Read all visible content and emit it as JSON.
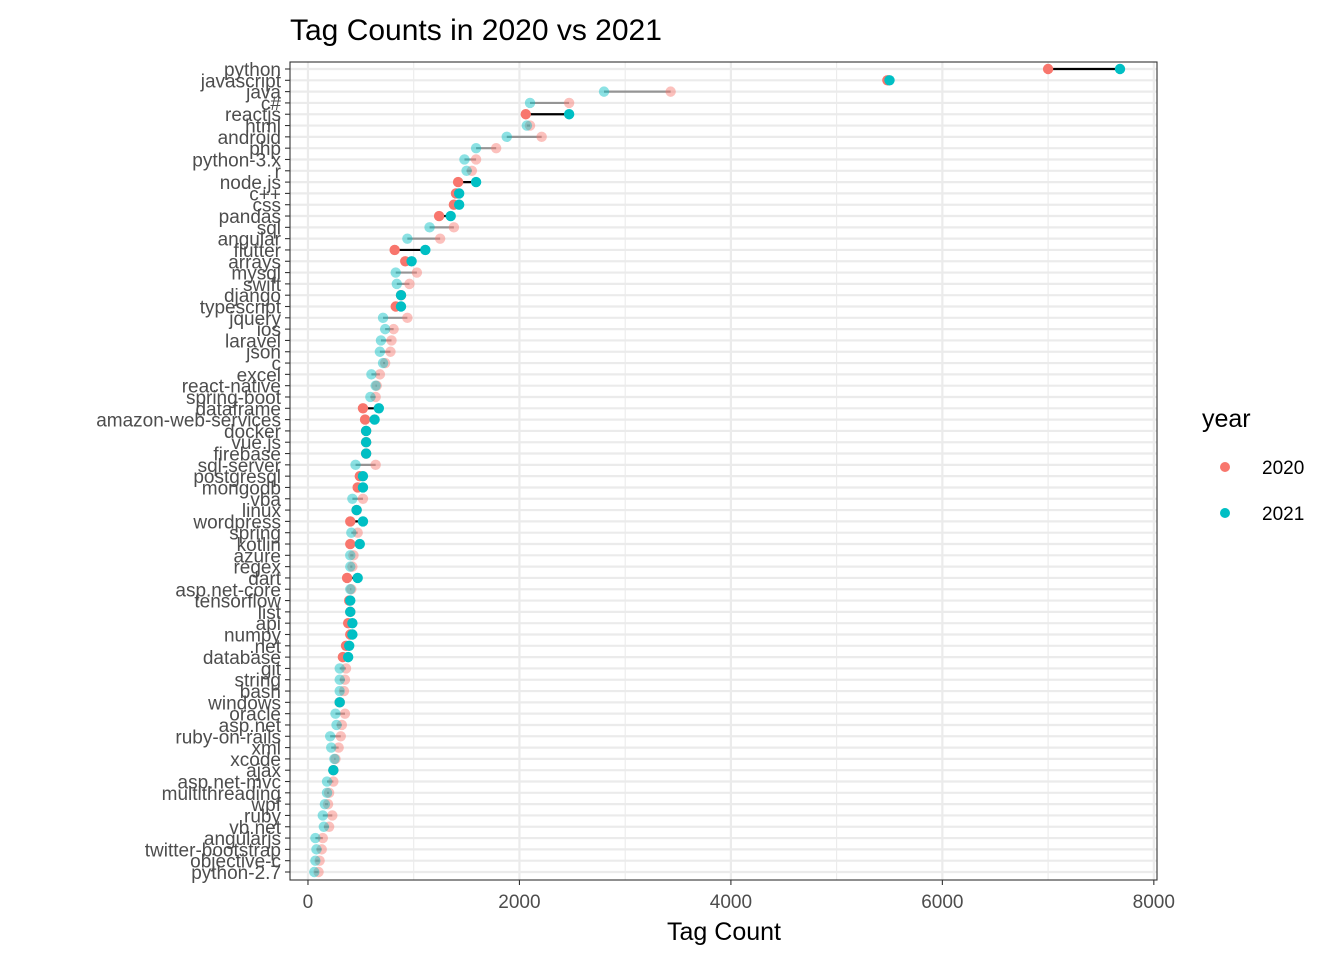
{
  "colors": {
    "y2020": "#F8766D",
    "y2021": "#00BFC4",
    "grid": "#EBEBEB",
    "panel_border": "#333333",
    "tick_text": "#4D4D4D"
  },
  "chart_data": {
    "type": "dumbbell",
    "title": "Tag Counts in 2020 vs 2021",
    "xlabel": "Tag Count",
    "ylabel": "",
    "xlim": [
      -170,
      8030
    ],
    "x_ticks": [
      0,
      2000,
      4000,
      6000,
      8000
    ],
    "x_tick_labels": [
      "0",
      "2000",
      "4000",
      "6000",
      "8000"
    ],
    "grid": true,
    "legend": {
      "title": "year",
      "position": "right",
      "entries": [
        "2020",
        "2021"
      ]
    },
    "categories": [
      "python",
      "javascript",
      "java",
      "c#",
      "reactjs",
      "html",
      "android",
      "php",
      "python-3.x",
      "r",
      "node.js",
      "c++",
      "css",
      "pandas",
      "sql",
      "angular",
      "flutter",
      "arrays",
      "mysql",
      "swift",
      "django",
      "typescript",
      "jquery",
      "ios",
      "laravel",
      "json",
      "c",
      "excel",
      "react-native",
      "spring-boot",
      "dataframe",
      "amazon-web-services",
      "docker",
      "vue.js",
      "firebase",
      "sql-server",
      "postgresql",
      "mongodb",
      "vba",
      "linux",
      "wordpress",
      "spring",
      "kotlin",
      "azure",
      "regex",
      "dart",
      "asp.net-core",
      "tensorflow",
      "list",
      "api",
      "numpy",
      ".net",
      "database",
      "git",
      "string",
      "bash",
      "windows",
      "oracle",
      "asp.net",
      "ruby-on-rails",
      "xml",
      "xcode",
      "ajax",
      "asp.net-mvc",
      "multithreading",
      "wpf",
      "ruby",
      "vb.net",
      "angularjs",
      "twitter-bootstrap",
      "objective-c",
      "python-2.7"
    ],
    "series": [
      {
        "name": "2020",
        "values": [
          7000,
          5480,
          3430,
          2470,
          2060,
          2100,
          2210,
          1780,
          1590,
          1550,
          1420,
          1400,
          1380,
          1240,
          1380,
          1250,
          820,
          920,
          1030,
          960,
          880,
          830,
          940,
          810,
          790,
          780,
          730,
          680,
          650,
          640,
          520,
          540,
          550,
          550,
          550,
          640,
          490,
          470,
          520,
          460,
          400,
          470,
          400,
          430,
          420,
          370,
          410,
          390,
          400,
          380,
          400,
          360,
          330,
          360,
          350,
          340,
          300,
          350,
          320,
          310,
          290,
          260,
          240,
          240,
          200,
          190,
          230,
          200,
          140,
          130,
          110,
          100
        ]
      },
      {
        "name": "2021",
        "values": [
          7680,
          5500,
          2800,
          2100,
          2470,
          2070,
          1880,
          1590,
          1480,
          1500,
          1590,
          1430,
          1430,
          1350,
          1150,
          940,
          1110,
          980,
          830,
          840,
          880,
          880,
          710,
          730,
          690,
          680,
          710,
          600,
          640,
          590,
          670,
          630,
          550,
          550,
          550,
          450,
          520,
          520,
          420,
          460,
          520,
          410,
          490,
          400,
          400,
          470,
          400,
          400,
          400,
          420,
          420,
          390,
          380,
          300,
          300,
          300,
          300,
          260,
          270,
          210,
          220,
          250,
          240,
          180,
          180,
          160,
          140,
          150,
          70,
          80,
          70,
          60
        ]
      }
    ]
  }
}
